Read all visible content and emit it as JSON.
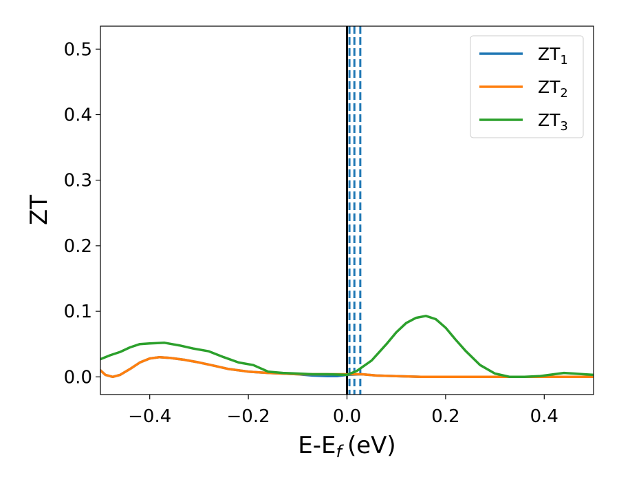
{
  "chart_data": {
    "type": "line",
    "xlabel": "E-E",
    "xlabel_sub": "f",
    "xlabel_unit": "(eV)",
    "ylabel": "ZT",
    "xlim": [
      -0.5,
      0.5
    ],
    "ylim": [
      -0.027,
      0.535
    ],
    "xticks": [
      -0.4,
      -0.2,
      0.0,
      0.2,
      0.4
    ],
    "xtick_labels": [
      "−0.4",
      "−0.2",
      "0.0",
      "0.2",
      "0.4"
    ],
    "yticks": [
      0.0,
      0.1,
      0.2,
      0.3,
      0.4,
      0.5
    ],
    "ytick_labels": [
      "0.0",
      "0.1",
      "0.2",
      "0.3",
      "0.4",
      "0.5"
    ],
    "grid": false,
    "legend_position": "top-right",
    "vlines": [
      {
        "x": 0.0,
        "style": "solid",
        "color": "#000000"
      },
      {
        "x": 0.005,
        "style": "dashed",
        "color": "#1f77b4"
      },
      {
        "x": 0.015,
        "style": "dashed",
        "color": "#1f77b4"
      },
      {
        "x": 0.027,
        "style": "dashed",
        "color": "#1f77b4"
      }
    ],
    "series": [
      {
        "name": "ZT",
        "name_sub": "1",
        "color": "#1f77b4",
        "x": [
          -0.5,
          -0.49,
          -0.475,
          -0.46,
          -0.44,
          -0.42,
          -0.4,
          -0.38,
          -0.36,
          -0.33,
          -0.3,
          -0.27,
          -0.24,
          -0.2,
          -0.16,
          -0.13,
          -0.1,
          -0.07,
          -0.04,
          -0.02,
          0.0,
          0.03,
          0.06,
          0.1,
          0.15,
          0.2,
          0.3,
          0.4,
          0.5
        ],
        "y": [
          0.01,
          0.003,
          0.0,
          0.003,
          0.012,
          0.022,
          0.028,
          0.03,
          0.029,
          0.026,
          0.022,
          0.017,
          0.012,
          0.008,
          0.006,
          0.005,
          0.004,
          0.002,
          0.001,
          0.001,
          0.003,
          0.004,
          0.002,
          0.001,
          0.0,
          0.0,
          0.0,
          0.0,
          0.0
        ]
      },
      {
        "name": "ZT",
        "name_sub": "2",
        "color": "#ff7f0e",
        "x": [
          -0.5,
          -0.49,
          -0.475,
          -0.46,
          -0.44,
          -0.42,
          -0.4,
          -0.38,
          -0.36,
          -0.33,
          -0.3,
          -0.27,
          -0.24,
          -0.2,
          -0.16,
          -0.13,
          -0.1,
          -0.07,
          -0.04,
          -0.02,
          0.0,
          0.03,
          0.06,
          0.1,
          0.15,
          0.2,
          0.3,
          0.4,
          0.5
        ],
        "y": [
          0.01,
          0.003,
          0.0,
          0.003,
          0.012,
          0.022,
          0.028,
          0.03,
          0.029,
          0.026,
          0.022,
          0.017,
          0.012,
          0.008,
          0.006,
          0.005,
          0.004,
          0.004,
          0.004,
          0.004,
          0.004,
          0.004,
          0.002,
          0.001,
          0.0,
          0.0,
          0.0,
          0.0,
          0.0
        ]
      },
      {
        "name": "ZT",
        "name_sub": "3",
        "color": "#2ca02c",
        "x": [
          -0.5,
          -0.48,
          -0.46,
          -0.44,
          -0.42,
          -0.4,
          -0.37,
          -0.34,
          -0.31,
          -0.28,
          -0.25,
          -0.22,
          -0.19,
          -0.16,
          -0.13,
          -0.1,
          -0.07,
          -0.04,
          0.0,
          0.02,
          0.05,
          0.08,
          0.1,
          0.12,
          0.14,
          0.16,
          0.18,
          0.2,
          0.22,
          0.24,
          0.27,
          0.3,
          0.33,
          0.36,
          0.39,
          0.42,
          0.44,
          0.46,
          0.48,
          0.5
        ],
        "y": [
          0.027,
          0.033,
          0.038,
          0.045,
          0.05,
          0.051,
          0.052,
          0.048,
          0.043,
          0.039,
          0.03,
          0.022,
          0.018,
          0.008,
          0.006,
          0.005,
          0.004,
          0.004,
          0.003,
          0.009,
          0.025,
          0.05,
          0.068,
          0.082,
          0.09,
          0.093,
          0.088,
          0.075,
          0.057,
          0.04,
          0.018,
          0.005,
          0.0,
          0.0,
          0.001,
          0.004,
          0.006,
          0.005,
          0.004,
          0.003
        ]
      }
    ]
  }
}
